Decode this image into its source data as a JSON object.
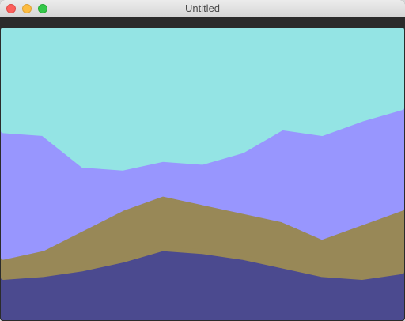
{
  "window": {
    "title": "Untitled",
    "controls": {
      "close": "close-button",
      "minimize": "minimize-button",
      "maximize": "maximize-button"
    }
  },
  "chart_data": {
    "type": "area",
    "stacked": true,
    "x": [
      0,
      10,
      20,
      30,
      40,
      50,
      60,
      70,
      80,
      90,
      100
    ],
    "series": [
      {
        "color": "#4b4a8f",
        "values": [
          14,
          15,
          17,
          20,
          24,
          23,
          21,
          18,
          15,
          14,
          16
        ]
      },
      {
        "color": "#988857",
        "values": [
          7,
          9,
          14,
          18,
          19,
          17,
          16,
          16,
          13,
          19,
          22
        ]
      },
      {
        "color": "#9896fe",
        "values": [
          44,
          40,
          22,
          14,
          12,
          14,
          21,
          32,
          36,
          36,
          35
        ]
      },
      {
        "color": "#94e4e4",
        "values": [
          35,
          36,
          47,
          48,
          45,
          46,
          42,
          34,
          36,
          31,
          27
        ]
      }
    ],
    "ylim": [
      0,
      100
    ],
    "grid": false,
    "legend": "none",
    "background": "#2b2b2b"
  }
}
